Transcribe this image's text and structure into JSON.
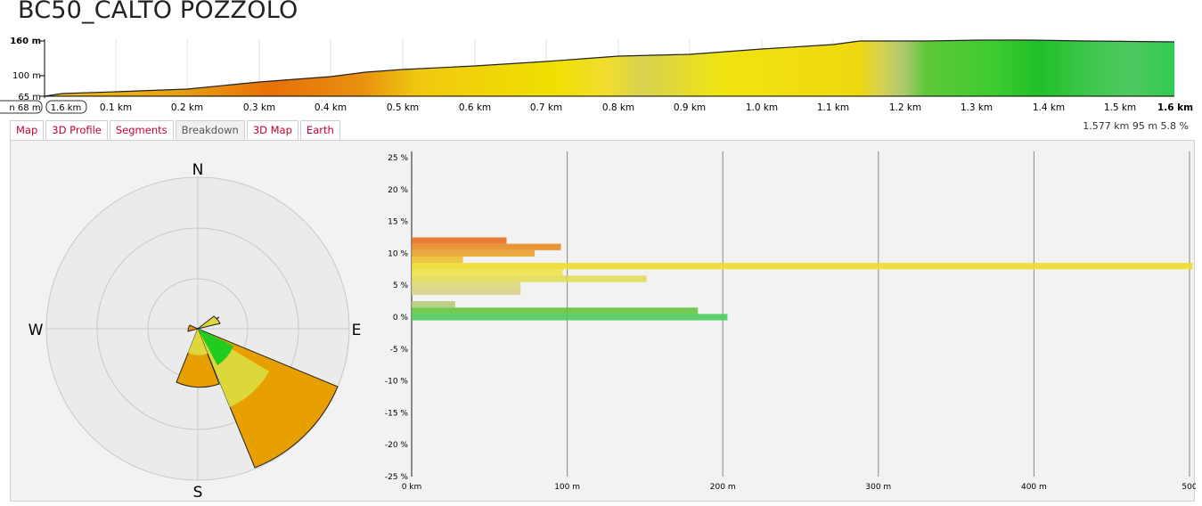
{
  "page_title": "BC50_CALTO POZZOLO",
  "profile": {
    "y_labels": [
      "160 m",
      "100 m",
      "65 m"
    ],
    "x_start_min": "n 68 m",
    "x_start_max": "1.6 km",
    "x_labels": [
      "0.1 km",
      "0.2 km",
      "0.3 km",
      "0.4 km",
      "0.5 km",
      "0.6 km",
      "0.7 km",
      "0.8 km",
      "0.9 km",
      "1.0 km",
      "1.1 km",
      "1.2 km",
      "1.3 km",
      "1.4 km",
      "1.5 km",
      "1.6 km"
    ]
  },
  "tabs": [
    {
      "label": "Map",
      "active": false
    },
    {
      "label": "3D Profile",
      "active": false
    },
    {
      "label": "Segments",
      "active": false
    },
    {
      "label": "Breakdown",
      "active": true
    },
    {
      "label": "3D Map",
      "active": false
    },
    {
      "label": "Earth",
      "active": false
    }
  ],
  "summary": "1.577 km 95 m 5.8 %",
  "compass": {
    "n": "N",
    "e": "E",
    "s": "S",
    "w": "W"
  },
  "chart_data": {
    "type": "bar",
    "orientation": "horizontal",
    "y_axis_ticks": [
      "25 %",
      "20 %",
      "15 %",
      "10 %",
      "5 %",
      "0 %",
      "-5 %",
      "-10 %",
      "-15 %",
      "-20 %",
      "-25 %"
    ],
    "x_axis_ticks": [
      "0 km",
      "100 m",
      "200 m",
      "300 m",
      "400 m",
      "500"
    ],
    "xlim": [
      0,
      500
    ],
    "ylim": [
      -25,
      25
    ],
    "grid": true,
    "bars": [
      {
        "grade": 12,
        "distance": 61,
        "color": "#e87020"
      },
      {
        "grade": 11,
        "distance": 96,
        "color": "#e98b24"
      },
      {
        "grade": 10,
        "distance": 79,
        "color": "#e8a22a"
      },
      {
        "grade": 9,
        "distance": 33,
        "color": "#edc030"
      },
      {
        "grade": 8,
        "distance": 502,
        "color": "#f0dc2c"
      },
      {
        "grade": 7,
        "distance": 97,
        "color": "#f0e24a"
      },
      {
        "grade": 6,
        "distance": 151,
        "color": "#e2dc58"
      },
      {
        "grade": 5,
        "distance": 70,
        "color": "#dcd878"
      },
      {
        "grade": 4,
        "distance": 70,
        "color": "#d8d28a"
      },
      {
        "grade": 2,
        "distance": 28,
        "color": "#b4cc78"
      },
      {
        "grade": 1,
        "distance": 184,
        "color": "#66c440"
      },
      {
        "grade": 0,
        "distance": 203,
        "color": "#4ccc5c"
      }
    ]
  }
}
